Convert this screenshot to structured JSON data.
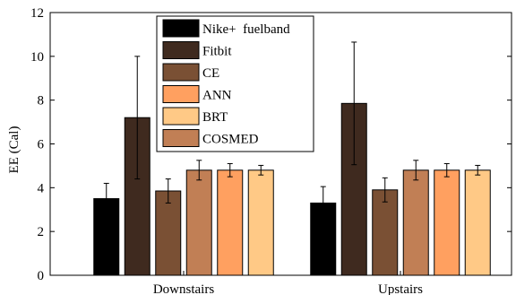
{
  "chart_data": {
    "type": "bar",
    "title": "",
    "xlabel": "",
    "ylabel": "EE (Cal)",
    "ylim": [
      0,
      12
    ],
    "yticks": [
      0,
      2,
      4,
      6,
      8,
      10,
      12
    ],
    "grid": false,
    "legend_position": "top-center",
    "categories": [
      "Downstairs",
      "Upstairs"
    ],
    "series": [
      {
        "name": "Nike+  fuelband",
        "color": "#000000",
        "values": [
          3.5,
          3.3
        ],
        "error": [
          0.7,
          0.75
        ]
      },
      {
        "name": "Fitbit",
        "color": "#3f2a1f",
        "values": [
          7.2,
          7.85
        ],
        "error": [
          2.8,
          2.8
        ]
      },
      {
        "name": "CE",
        "color": "#7a5034",
        "values": [
          3.85,
          3.9
        ],
        "error": [
          0.55,
          0.55
        ]
      },
      {
        "name": "COSMED",
        "color": "#c17f55",
        "values": [
          4.8,
          4.8
        ],
        "error": [
          0.45,
          0.45
        ]
      },
      {
        "name": "ANN",
        "color": "#ffa060",
        "values": [
          4.8,
          4.8
        ],
        "error": [
          0.3,
          0.3
        ]
      },
      {
        "name": "BRT",
        "color": "#ffc986",
        "values": [
          4.8,
          4.8
        ],
        "error": [
          0.22,
          0.22
        ]
      }
    ],
    "legend_order": [
      "Nike+  fuelband",
      "Fitbit",
      "CE",
      "ANN",
      "BRT",
      "COSMED"
    ]
  }
}
